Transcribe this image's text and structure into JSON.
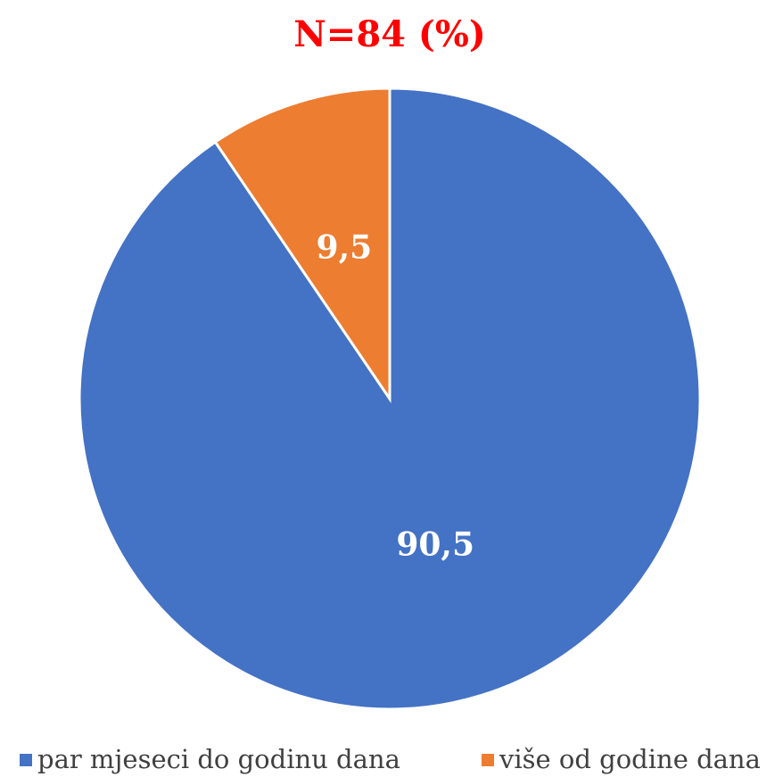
{
  "chart_data": {
    "type": "pie",
    "title": "N=84 (%)",
    "categories": [
      "par mjeseci do godinu dana",
      "više od godine dana"
    ],
    "values": [
      90.5,
      9.5
    ],
    "value_labels": [
      "90,5",
      "9,5"
    ],
    "colors": [
      "#4472c4",
      "#ed7d31"
    ]
  }
}
